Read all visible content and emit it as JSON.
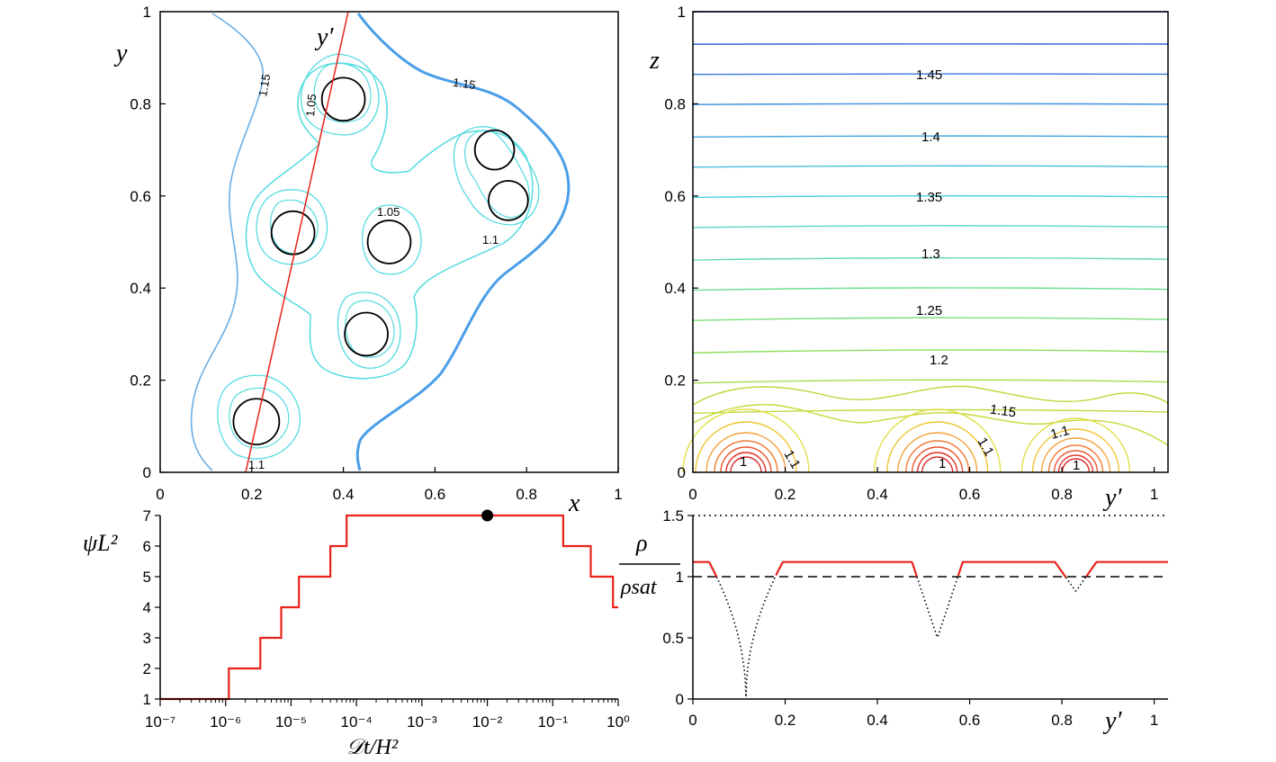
{
  "colors": {
    "axis": "#000000",
    "section_line": "#e8231b",
    "staircase": "#e8231b",
    "circle": "#000000",
    "cyan": "#55dbe0",
    "light_blue": "#6aaee6",
    "blue_thick": "#4a9ee8"
  },
  "chart_data": [
    {
      "id": "top-left",
      "type": "contour",
      "xlabel": "x",
      "ylabel": "y",
      "section_label": "y′",
      "xlim": [
        0,
        1
      ],
      "ylim": [
        0,
        1
      ],
      "xticks": [
        "0",
        "0.2",
        "0.4",
        "0.6",
        "0.8",
        "1"
      ],
      "yticks": [
        "0",
        "0.2",
        "0.4",
        "0.6",
        "0.8",
        "1"
      ],
      "circles": [
        {
          "x": 0.21,
          "y": 0.11,
          "r": 0.05
        },
        {
          "x": 0.29,
          "y": 0.52,
          "r": 0.047
        },
        {
          "x": 0.4,
          "y": 0.81,
          "r": 0.047
        },
        {
          "x": 0.45,
          "y": 0.3,
          "r": 0.047
        },
        {
          "x": 0.5,
          "y": 0.5,
          "r": 0.047
        },
        {
          "x": 0.73,
          "y": 0.7,
          "r": 0.043
        },
        {
          "x": 0.76,
          "y": 0.59,
          "r": 0.043
        }
      ],
      "section_line": {
        "x0": 0.185,
        "y0": 0.0,
        "x1": 0.415,
        "y1": 1.0
      },
      "contour_labels": [
        "1.15",
        "1.05",
        "1.15",
        "1.05",
        "1.1",
        "1.1"
      ]
    },
    {
      "id": "top-right",
      "type": "contour",
      "xlabel": "y′",
      "ylabel": "z",
      "xlim": [
        0,
        1.03
      ],
      "ylim": [
        0,
        1
      ],
      "xticks": [
        "0",
        "0.2",
        "0.4",
        "0.6",
        "0.8",
        "1"
      ],
      "yticks": [
        "0",
        "0.2",
        "0.4",
        "0.6",
        "0.8",
        "1"
      ],
      "level_labels": [
        "1.45",
        "1.4",
        "1.35",
        "1.3",
        "1.25",
        "1.2",
        "1.15",
        "1.1",
        "1.1",
        "1.1",
        "1",
        "1",
        "1"
      ],
      "horizontal_levels": [
        1.0,
        0.93,
        0.865,
        0.8,
        0.73,
        0.665,
        0.6,
        0.535,
        0.465,
        0.4,
        0.335,
        0.265,
        0.2,
        0.135
      ],
      "cluster_centers": [
        0.115,
        0.53,
        0.83
      ]
    },
    {
      "id": "bottom-left",
      "type": "line",
      "xscale": "log",
      "xlabel": "𝒟t/H²",
      "ylabel": "ψL²",
      "xlim_log10": [
        -7,
        0
      ],
      "ylim": [
        1,
        7
      ],
      "xticks": [
        "10⁻⁷",
        "10⁻⁶",
        "10⁻⁵",
        "10⁻⁴",
        "10⁻³",
        "10⁻²",
        "10⁻¹",
        "10⁰"
      ],
      "yticks": [
        "1",
        "2",
        "3",
        "4",
        "5",
        "6",
        "7"
      ],
      "series": [
        {
          "name": "ψL²",
          "style": "step",
          "log10_x": [
            -7.0,
            -5.95,
            -5.95,
            -5.47,
            -5.47,
            -5.15,
            -5.15,
            -4.88,
            -4.88,
            -4.4,
            -4.4,
            -4.15,
            -4.15,
            -0.84,
            -0.84,
            -0.42,
            -0.42,
            -0.08,
            -0.08,
            0.0
          ],
          "y": [
            1,
            1,
            2,
            2,
            3,
            3,
            4,
            4,
            5,
            5,
            6,
            6,
            7,
            7,
            6,
            6,
            5,
            5,
            4,
            4
          ]
        }
      ],
      "marker": {
        "log10_x": -2.0,
        "y": 7
      }
    },
    {
      "id": "bottom-right",
      "type": "line",
      "xlabel": "y′",
      "ylabel_num": "ρ",
      "ylabel_den": "ρsat",
      "xlim": [
        0,
        1.03
      ],
      "ylim": [
        0,
        1.5
      ],
      "xticks": [
        "0",
        "0.2",
        "0.4",
        "0.6",
        "0.8",
        "1"
      ],
      "yticks": [
        "0",
        "0.5",
        "1",
        "1.5"
      ],
      "reference_lines": [
        {
          "y": 1.0,
          "style": "dashed"
        },
        {
          "y": 1.5,
          "style": "dotted"
        }
      ],
      "dips": [
        {
          "center": 0.115,
          "depth": 1.0,
          "width": 0.08,
          "exp": 4
        },
        {
          "center": 0.53,
          "depth": 0.5,
          "width": 0.055,
          "exp": 2
        },
        {
          "center": 0.83,
          "depth": 0.12,
          "width": 0.045,
          "exp": 2
        }
      ],
      "series": [
        {
          "name": "ρ/ρsat",
          "baseline": 1.12
        }
      ]
    }
  ]
}
